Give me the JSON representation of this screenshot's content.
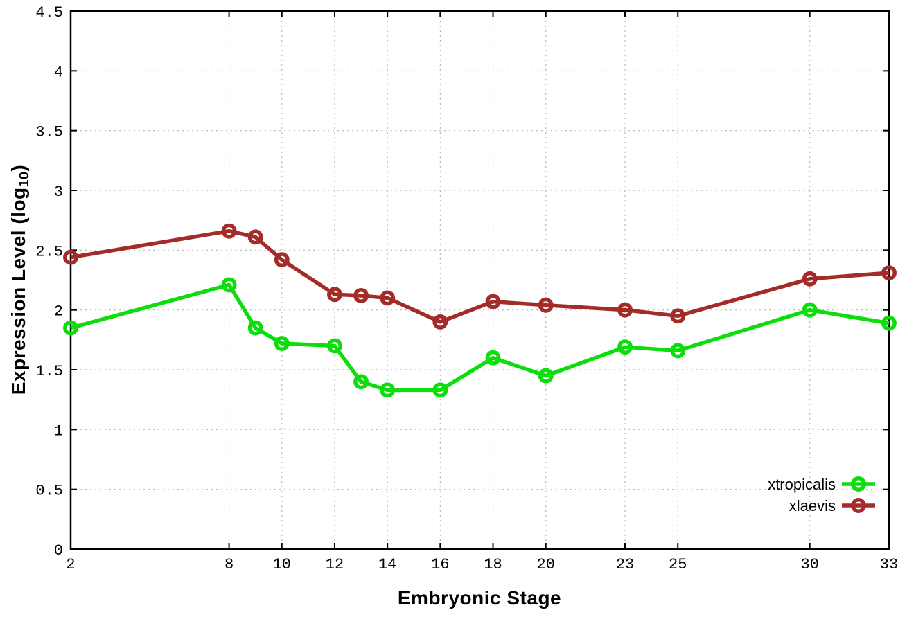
{
  "figure": {
    "xlabel": "Embryonic Stage",
    "ylabel_prefix": "Expression Level (log",
    "ylabel_sub": "10",
    "ylabel_suffix": ")",
    "background_color": "#ffffff",
    "axis_color": "#000000",
    "grid_color": "#b8b8b8"
  },
  "chart_data": {
    "type": "line",
    "title": "",
    "xlabel": "Embryonic Stage",
    "ylabel": "Expression Level (log10)",
    "x": [
      2,
      8,
      9,
      10,
      12,
      13,
      14,
      16,
      18,
      20,
      23,
      25,
      30,
      33
    ],
    "series": [
      {
        "name": "xtropicalis",
        "color": "#0ddd0d",
        "marker": "open-circle",
        "values": [
          1.85,
          2.21,
          1.85,
          1.72,
          1.7,
          1.4,
          1.33,
          1.33,
          1.6,
          1.45,
          1.69,
          1.66,
          2.0,
          1.89
        ]
      },
      {
        "name": "xlaevis",
        "color": "#a42c28",
        "marker": "open-circle",
        "values": [
          2.44,
          2.66,
          2.61,
          2.42,
          2.13,
          2.12,
          2.1,
          1.9,
          2.07,
          2.04,
          2.0,
          1.95,
          2.26,
          2.31
        ]
      }
    ],
    "xlim": [
      2,
      33
    ],
    "ylim": [
      0,
      4.5
    ],
    "xticks": [
      2,
      8,
      10,
      12,
      14,
      16,
      18,
      20,
      23,
      25,
      30,
      33
    ],
    "xtick_labels": [
      "2",
      "8",
      "10",
      "12",
      "14",
      "16",
      "18",
      "20",
      "23",
      "25",
      "30",
      "33"
    ],
    "yticks": [
      0,
      0.5,
      1,
      1.5,
      2,
      2.5,
      3,
      3.5,
      4,
      4.5
    ],
    "ytick_labels": [
      "0",
      "0.5",
      "1",
      "1.5",
      "2",
      "2.5",
      "3",
      "3.5",
      "4",
      "4.5"
    ],
    "grid": true,
    "grid_style": "dotted",
    "legend_position": "inside-bottom-right",
    "legend": [
      "xtropicalis",
      "xlaevis"
    ]
  }
}
